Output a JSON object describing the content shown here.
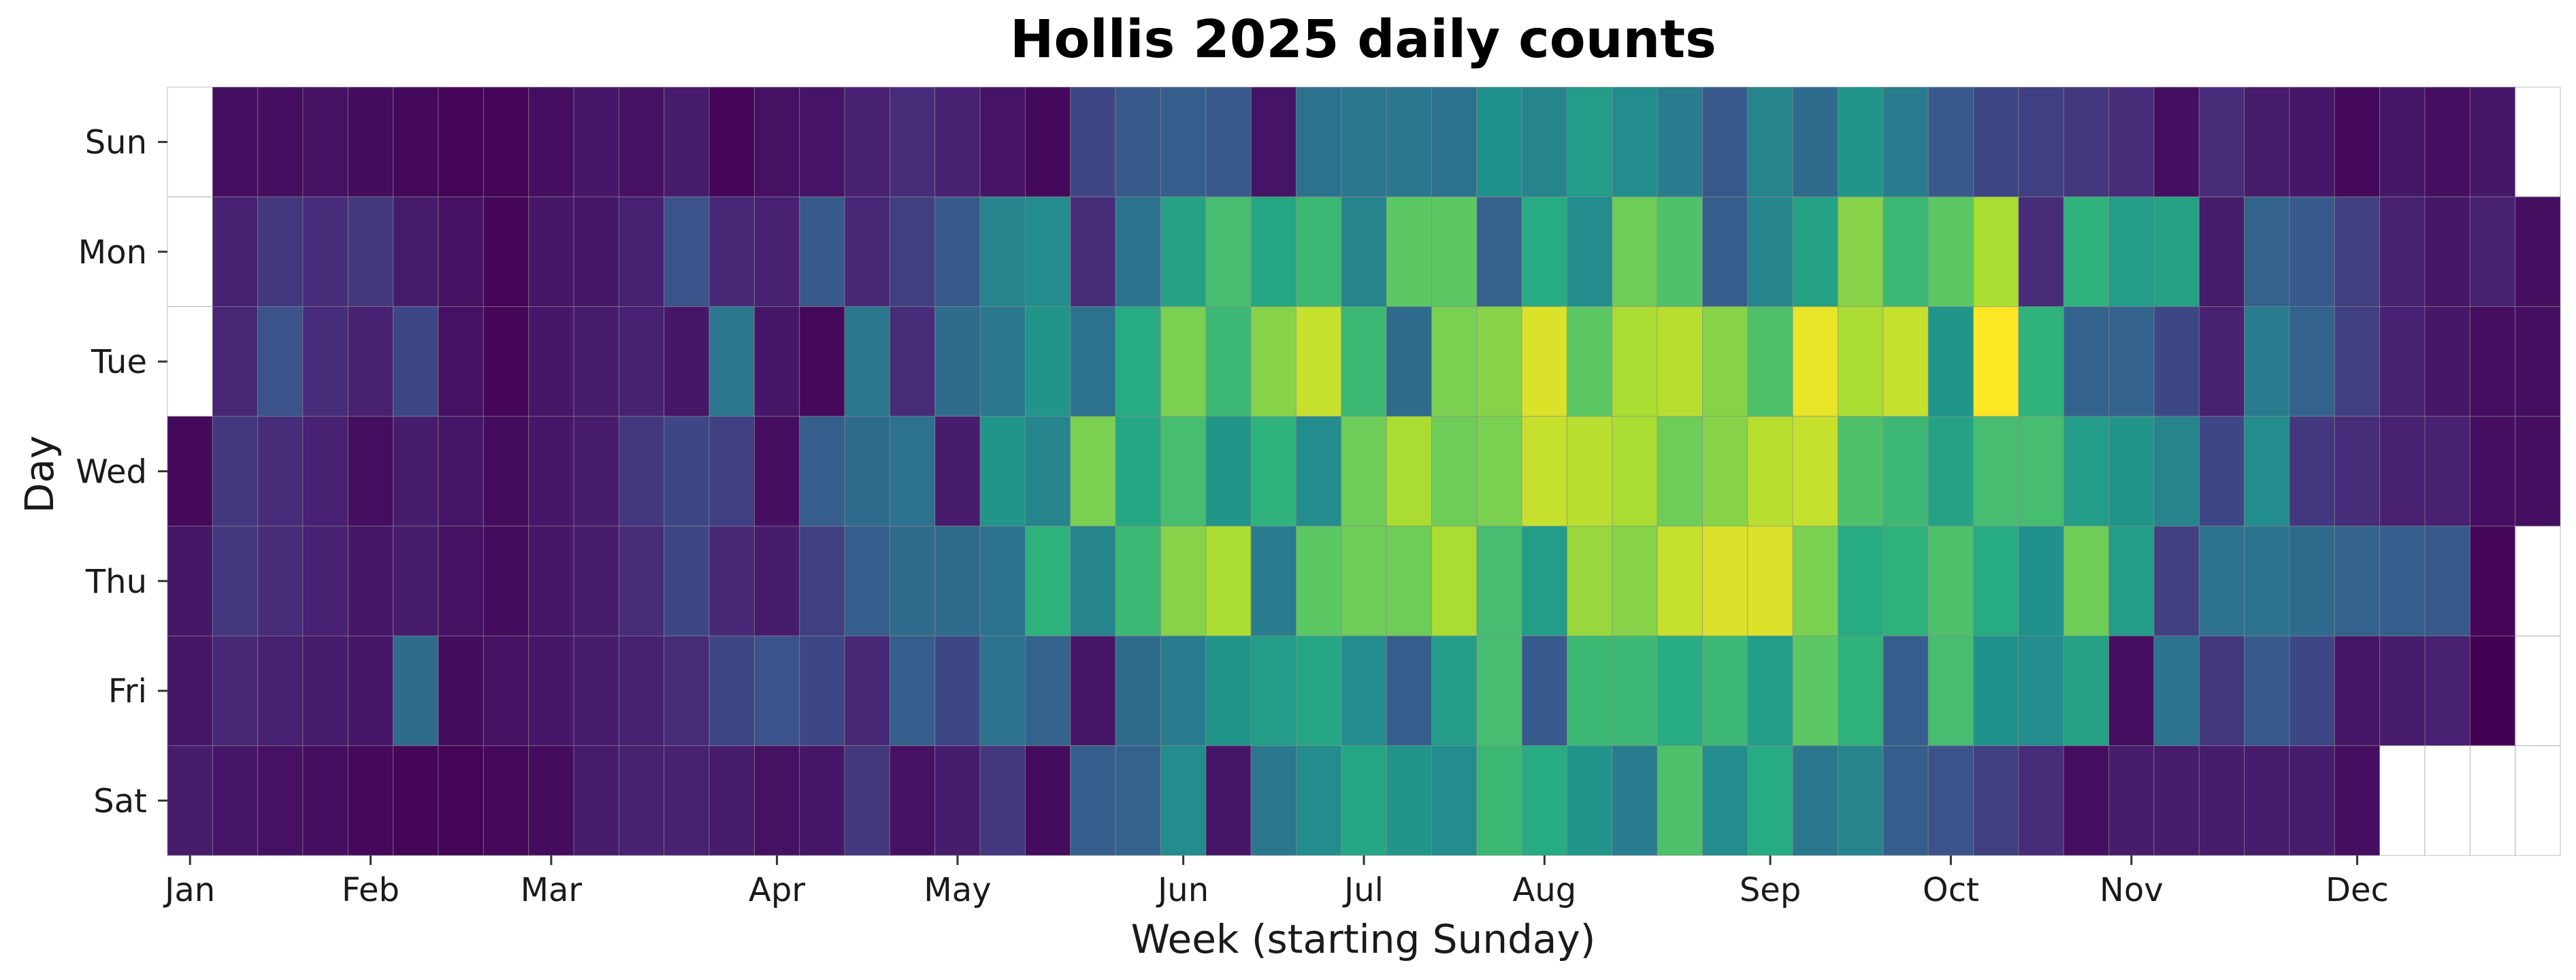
{
  "chart_data": {
    "type": "heatmap",
    "title": "Hollis 2025 daily counts",
    "xlabel": "Week (starting Sunday)",
    "ylabel": "Day",
    "year": 2025,
    "y_categories": [
      "Sun",
      "Mon",
      "Tue",
      "Wed",
      "Thu",
      "Fri",
      "Sat"
    ],
    "x_tick_labels": [
      "Jan",
      "Feb",
      "Mar",
      "Apr",
      "May",
      "Jun",
      "Jul",
      "Aug",
      "Sep",
      "Oct",
      "Nov",
      "Dec"
    ],
    "colormap": "viridis",
    "value_scale": "relative 0-1",
    "missing_color": "#ffffff",
    "grid_line_color": "#8a8a8a",
    "weeks": [
      "2024-12-29",
      "2025-01-05",
      "2025-01-12",
      "2025-01-19",
      "2025-01-26",
      "2025-02-02",
      "2025-02-09",
      "2025-02-16",
      "2025-02-23",
      "2025-03-02",
      "2025-03-09",
      "2025-03-16",
      "2025-03-23",
      "2025-03-30",
      "2025-04-06",
      "2025-04-13",
      "2025-04-20",
      "2025-04-27",
      "2025-05-04",
      "2025-05-11",
      "2025-05-18",
      "2025-05-25",
      "2025-06-01",
      "2025-06-08",
      "2025-06-15",
      "2025-06-22",
      "2025-06-29",
      "2025-07-06",
      "2025-07-13",
      "2025-07-20",
      "2025-07-27",
      "2025-08-03",
      "2025-08-10",
      "2025-08-17",
      "2025-08-24",
      "2025-08-31",
      "2025-09-07",
      "2025-09-14",
      "2025-09-21",
      "2025-09-28",
      "2025-10-05",
      "2025-10-12",
      "2025-10-19",
      "2025-10-26",
      "2025-11-02",
      "2025-11-09",
      "2025-11-16",
      "2025-11-23",
      "2025-11-30",
      "2025-12-07",
      "2025-12-14",
      "2025-12-21",
      "2025-12-28"
    ],
    "values": [
      [
        null,
        0.05,
        0.05,
        0.06,
        0.04,
        0.03,
        0.01,
        0.02,
        0.05,
        0.08,
        0.06,
        0.1,
        0.02,
        0.06,
        0.07,
        0.12,
        0.15,
        0.12,
        0.07,
        0.03,
        0.22,
        0.28,
        0.3,
        0.28,
        0.07,
        0.38,
        0.4,
        0.4,
        0.38,
        0.5,
        0.45,
        0.55,
        0.48,
        0.42,
        0.28,
        0.45,
        0.35,
        0.52,
        0.42,
        0.28,
        0.22,
        0.2,
        0.18,
        0.15,
        0.05,
        0.15,
        0.1,
        0.08,
        0.03,
        0.08,
        0.05,
        0.08,
        null
      ],
      [
        null,
        0.12,
        0.18,
        0.15,
        0.18,
        0.1,
        0.06,
        0.02,
        0.08,
        0.08,
        0.12,
        0.25,
        0.14,
        0.12,
        0.28,
        0.14,
        0.2,
        0.28,
        0.45,
        0.48,
        0.15,
        0.38,
        0.58,
        0.7,
        0.6,
        0.68,
        0.45,
        0.75,
        0.75,
        0.32,
        0.62,
        0.48,
        0.78,
        0.72,
        0.3,
        0.45,
        0.58,
        0.82,
        0.68,
        0.75,
        0.88,
        0.15,
        0.65,
        0.55,
        0.58,
        0.1,
        0.32,
        0.28,
        0.2,
        0.12,
        0.08,
        0.12,
        0.05
      ],
      [
        null,
        0.14,
        0.25,
        0.15,
        0.12,
        0.22,
        0.06,
        0.02,
        0.08,
        0.1,
        0.12,
        0.08,
        0.4,
        0.08,
        0.03,
        0.4,
        0.15,
        0.35,
        0.4,
        0.52,
        0.38,
        0.62,
        0.8,
        0.68,
        0.82,
        0.92,
        0.68,
        0.35,
        0.8,
        0.82,
        0.95,
        0.75,
        0.88,
        0.9,
        0.82,
        0.72,
        0.97,
        0.88,
        0.92,
        0.52,
        1.0,
        0.65,
        0.32,
        0.32,
        0.22,
        0.12,
        0.42,
        0.32,
        0.2,
        0.12,
        0.08,
        0.05,
        0.05
      ],
      [
        0.03,
        0.18,
        0.15,
        0.12,
        0.05,
        0.1,
        0.08,
        0.04,
        0.08,
        0.1,
        0.18,
        0.22,
        0.2,
        0.05,
        0.3,
        0.35,
        0.38,
        0.1,
        0.52,
        0.45,
        0.8,
        0.6,
        0.7,
        0.52,
        0.65,
        0.48,
        0.78,
        0.88,
        0.78,
        0.8,
        0.92,
        0.9,
        0.88,
        0.78,
        0.82,
        0.9,
        0.92,
        0.72,
        0.68,
        0.58,
        0.7,
        0.7,
        0.55,
        0.52,
        0.45,
        0.22,
        0.48,
        0.18,
        0.15,
        0.12,
        0.12,
        0.05,
        0.05
      ],
      [
        0.08,
        0.18,
        0.15,
        0.12,
        0.08,
        0.1,
        0.06,
        0.04,
        0.08,
        0.1,
        0.15,
        0.22,
        0.14,
        0.1,
        0.2,
        0.3,
        0.35,
        0.35,
        0.38,
        0.65,
        0.45,
        0.68,
        0.82,
        0.88,
        0.42,
        0.75,
        0.78,
        0.78,
        0.88,
        0.7,
        0.55,
        0.85,
        0.82,
        0.92,
        0.95,
        0.95,
        0.8,
        0.62,
        0.65,
        0.72,
        0.62,
        0.5,
        0.78,
        0.55,
        0.2,
        0.38,
        0.38,
        0.35,
        0.32,
        0.3,
        0.28,
        0.02,
        null
      ],
      [
        0.08,
        0.14,
        0.12,
        0.1,
        0.08,
        0.35,
        0.04,
        0.06,
        0.08,
        0.1,
        0.12,
        0.15,
        0.22,
        0.25,
        0.22,
        0.14,
        0.3,
        0.22,
        0.38,
        0.32,
        0.08,
        0.35,
        0.42,
        0.52,
        0.55,
        0.6,
        0.48,
        0.3,
        0.55,
        0.7,
        0.28,
        0.68,
        0.68,
        0.62,
        0.68,
        0.55,
        0.75,
        0.65,
        0.3,
        0.7,
        0.5,
        0.48,
        0.58,
        0.05,
        0.38,
        0.18,
        0.28,
        0.22,
        0.08,
        0.1,
        0.12,
        0.0,
        null
      ],
      [
        0.1,
        0.08,
        0.06,
        0.05,
        0.03,
        0.02,
        0.01,
        0.03,
        0.04,
        0.1,
        0.12,
        0.12,
        0.1,
        0.06,
        0.08,
        0.18,
        0.06,
        0.1,
        0.18,
        0.04,
        0.3,
        0.32,
        0.48,
        0.08,
        0.4,
        0.48,
        0.6,
        0.52,
        0.48,
        0.68,
        0.62,
        0.52,
        0.42,
        0.72,
        0.48,
        0.62,
        0.4,
        0.45,
        0.3,
        0.25,
        0.2,
        0.15,
        0.05,
        0.1,
        0.1,
        0.1,
        0.1,
        0.1,
        0.05,
        null,
        null,
        null,
        null
      ]
    ]
  }
}
